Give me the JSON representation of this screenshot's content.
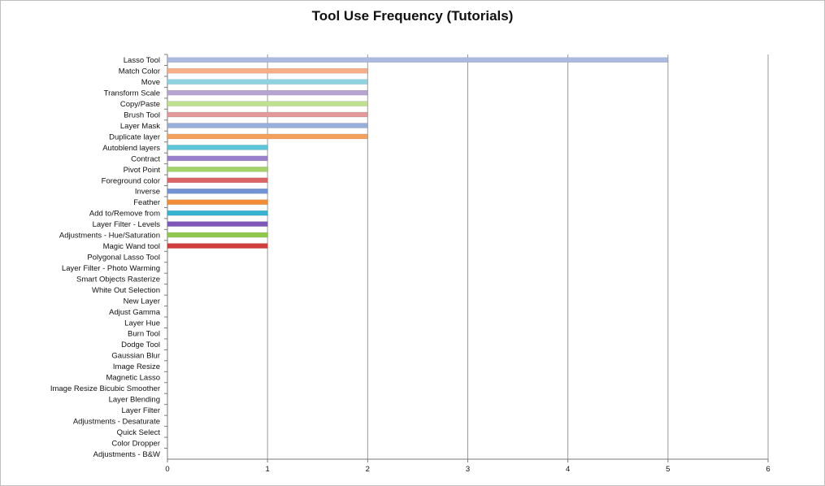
{
  "chart_data": {
    "type": "bar",
    "orientation": "horizontal",
    "title": "Tool Use Frequency (Tutorials)",
    "xlabel": "",
    "ylabel": "",
    "xlim": [
      0,
      6
    ],
    "x_ticks": [
      "0",
      "1",
      "2",
      "3",
      "4",
      "5",
      "6"
    ],
    "grid": "vertical",
    "legend": "none",
    "categories": [
      "Lasso Tool",
      "Match Color",
      "Move",
      "Transform Scale",
      "Copy/Paste",
      "Brush Tool",
      "Layer Mask",
      "Duplicate layer",
      "Autoblend layers",
      "Contract",
      "Pivot Point",
      "Foreground color",
      "Inverse",
      "Feather",
      "Add to/Remove from",
      "Layer Filter - Levels",
      "Adjustments - Hue/Saturation",
      "Magic Wand tool",
      "Polygonal Lasso Tool",
      "Layer Filter - Photo Warming",
      "Smart Objects Rasterize",
      "White Out Selection",
      "New Layer",
      "Adjust Gamma",
      "Layer Hue",
      "Burn Tool",
      "Dodge Tool",
      "Gaussian Blur",
      "Image Resize",
      "Magnetic Lasso",
      "Image Resize Bicubic Smoother",
      "Layer Blending",
      "Layer Filter",
      "Adjustments - Desaturate",
      "Quick Select",
      "Color Dropper",
      "Adjustments - B&W"
    ],
    "values": [
      5,
      2,
      2,
      2,
      2,
      2,
      2,
      2,
      1,
      1,
      1,
      1,
      1,
      1,
      1,
      1,
      1,
      1,
      0,
      0,
      0,
      0,
      0,
      0,
      0,
      0,
      0,
      0,
      0,
      0,
      0,
      0,
      0,
      0,
      0,
      0,
      0
    ],
    "colors": [
      "#a9b9e0",
      "#f7ae88",
      "#8fd3e2",
      "#b6a3d2",
      "#bfe08e",
      "#e39a9b",
      "#98aedb",
      "#f4a15c",
      "#5bc4d9",
      "#9a7fcb",
      "#a3d36a",
      "#da6566",
      "#7193d2",
      "#f28c36",
      "#35b3d0",
      "#7e57b8",
      "#8fc84c",
      "#d13c3d"
    ]
  }
}
